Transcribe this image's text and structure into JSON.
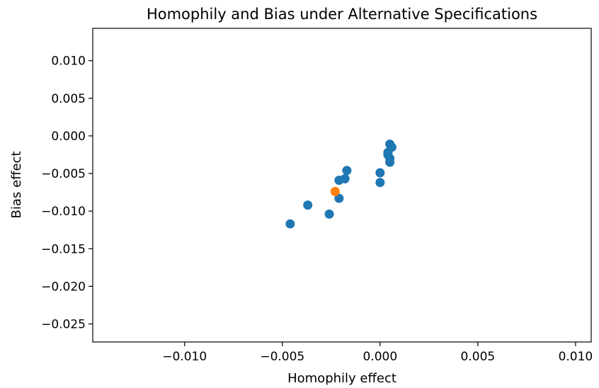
{
  "chart_data": {
    "type": "scatter",
    "title": "Homophily and Bias under Alternative Specifications",
    "xlabel": "Homophily effect",
    "ylabel": "Bias effect",
    "xlim": [
      -0.0147,
      0.0108
    ],
    "ylim": [
      -0.0274,
      0.0143
    ],
    "xticks": [
      -0.01,
      -0.005,
      0.0,
      0.005,
      0.01
    ],
    "xtick_labels": [
      "−0.010",
      "−0.005",
      "0.000",
      "0.005",
      "0.010"
    ],
    "yticks": [
      0.01,
      0.005,
      0.0,
      -0.005,
      -0.01,
      -0.015,
      -0.02,
      -0.025
    ],
    "ytick_labels": [
      "0.010",
      "0.005",
      "0.000",
      "−0.005",
      "−0.010",
      "−0.015",
      "−0.020",
      "−0.025"
    ],
    "grid": false,
    "series": [
      {
        "color": "#1f77b4",
        "points": [
          {
            "x": -0.0046,
            "y": -0.0117
          },
          {
            "x": -0.0037,
            "y": -0.0092
          },
          {
            "x": -0.0026,
            "y": -0.0104
          },
          {
            "x": -0.0021,
            "y": -0.0083
          },
          {
            "x": -0.0021,
            "y": -0.0059
          },
          {
            "x": -0.0018,
            "y": -0.0057
          },
          {
            "x": -0.0017,
            "y": -0.0046
          },
          {
            "x": 0.0,
            "y": -0.0049
          },
          {
            "x": 0.0,
            "y": -0.0062
          },
          {
            "x": 0.0004,
            "y": -0.0022
          },
          {
            "x": 0.0004,
            "y": -0.0025
          },
          {
            "x": 0.0005,
            "y": -0.003
          },
          {
            "x": 0.0005,
            "y": -0.0035
          },
          {
            "x": 0.0005,
            "y": -0.0011
          },
          {
            "x": 0.0006,
            "y": -0.0015
          }
        ]
      },
      {
        "color": "#ff7f0e",
        "points": [
          {
            "x": -0.0023,
            "y": -0.0074
          }
        ]
      }
    ]
  }
}
